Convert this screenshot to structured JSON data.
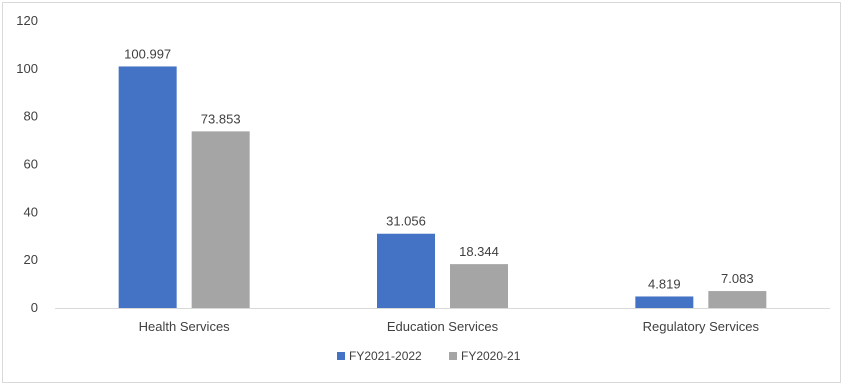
{
  "chart_data": {
    "type": "bar",
    "categories": [
      "Health Services",
      "Education Services",
      "Regulatory Services"
    ],
    "series": [
      {
        "name": "FY2021-2022",
        "color": "#4472C4",
        "values": [
          100.997,
          31.056,
          4.819
        ],
        "labels": [
          "100.997",
          "31.056",
          "4.819"
        ]
      },
      {
        "name": "FY2020-21",
        "color": "#A5A5A5",
        "values": [
          73.853,
          18.344,
          7.083
        ],
        "labels": [
          "73.853",
          "18.344",
          "7.083"
        ]
      }
    ],
    "ylim": [
      0,
      120
    ],
    "yticks": [
      "0",
      "20",
      "40",
      "60",
      "80",
      "100",
      "120"
    ],
    "grid": false,
    "legend": "bottom",
    "title": "",
    "xlabel": "",
    "ylabel": ""
  }
}
